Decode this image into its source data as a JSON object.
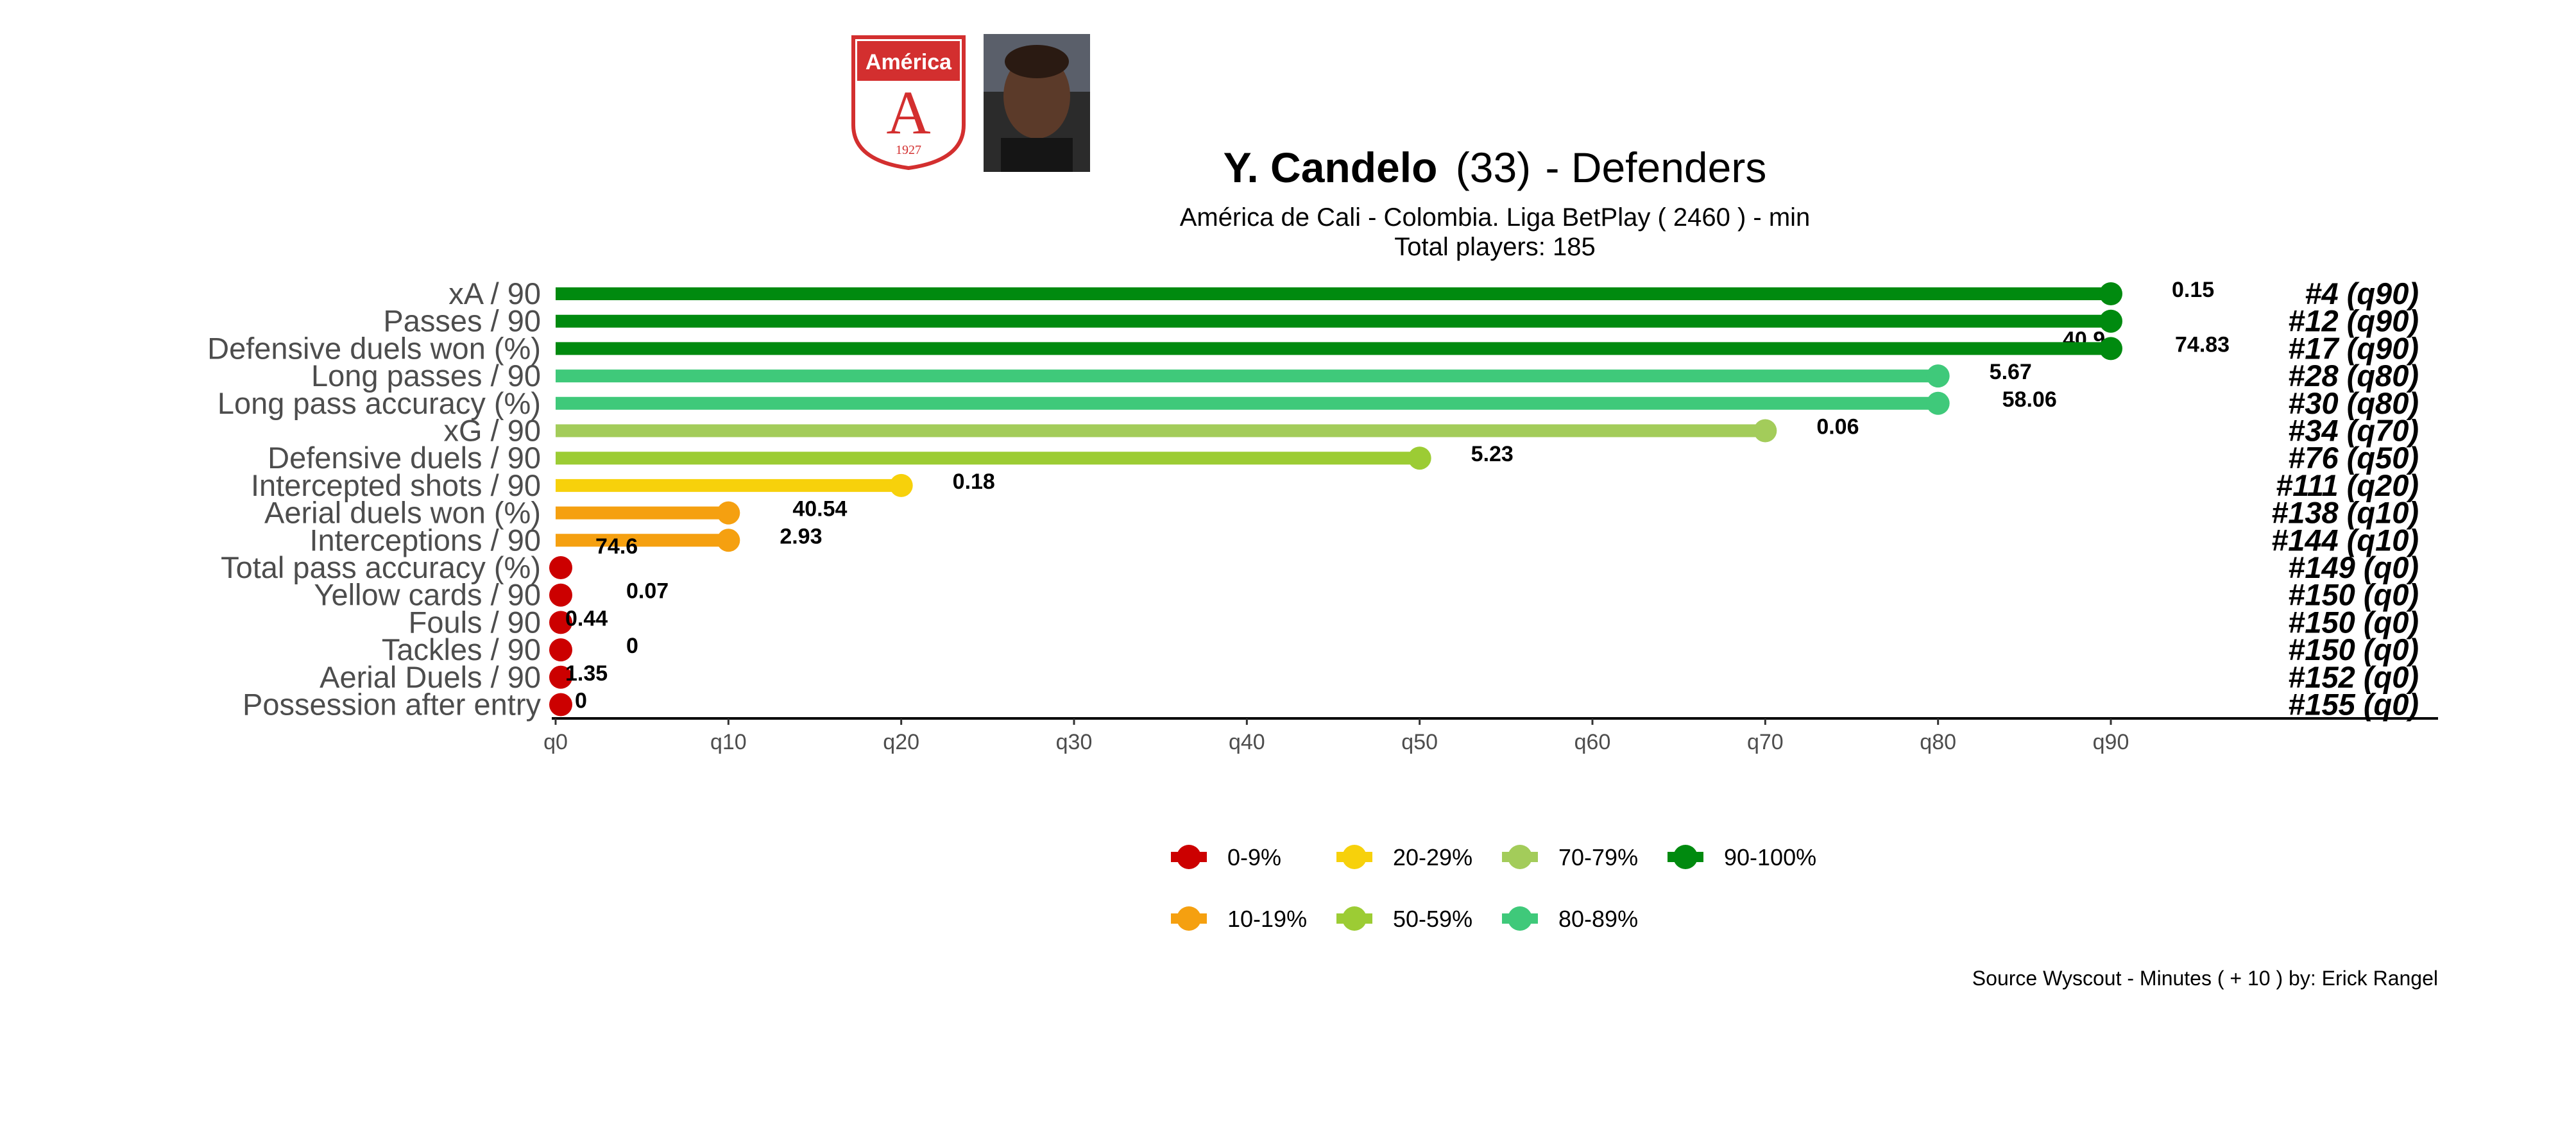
{
  "header": {
    "player_name": "Y. Candelo",
    "player_age": "(33)",
    "position": "Defenders",
    "subtitle": "América de Cali  -  Colombia. Liga BetPlay  ( 2460 ) - min",
    "total_players": "Total players:  185",
    "club_badge": {
      "name": "América",
      "year": "1927",
      "letter": "A",
      "color": "#d32f2f"
    },
    "player_photo": "player-photo"
  },
  "caption": "Source Wyscout - Minutes ( + 10 ) by: Erick Rangel",
  "colors": {
    "0-9%": "#cc0000",
    "10-19%": "#f5a010",
    "20-29%": "#f7d10b",
    "50-59%": "#9ccc34",
    "70-79%": "#a3cc5a",
    "80-89%": "#3fc97a",
    "90-100%": "#008a0f"
  },
  "legend": [
    {
      "label": "0-9%",
      "color": "#cc0000"
    },
    {
      "label": "20-29%",
      "color": "#f7d10b"
    },
    {
      "label": "70-79%",
      "color": "#a3cc5a"
    },
    {
      "label": "90-100%",
      "color": "#008a0f"
    },
    {
      "label": "10-19%",
      "color": "#f5a010"
    },
    {
      "label": "50-59%",
      "color": "#9ccc34"
    },
    {
      "label": "80-89%",
      "color": "#3fc97a"
    }
  ],
  "chart_data": {
    "type": "bar",
    "orientation": "horizontal",
    "x_axis_ticks": [
      "q0",
      "q10",
      "q20",
      "q30",
      "q40",
      "q50",
      "q60",
      "q70",
      "q80",
      "q90"
    ],
    "xlim": [
      0,
      100
    ],
    "grid": false,
    "legend_position": "bottom",
    "metrics": [
      {
        "name": "xA / 90",
        "percentile": 90,
        "value": "0.15",
        "rank": "#4 (q90)",
        "band": "90-100%"
      },
      {
        "name": "Passes / 90",
        "percentile": 90,
        "value": "40.9",
        "rank": "#12 (q90)",
        "band": "90-100%"
      },
      {
        "name": "Defensive duels won (%)",
        "percentile": 90,
        "value": "74.83",
        "rank": "#17 (q90)",
        "band": "90-100%"
      },
      {
        "name": "Long passes / 90",
        "percentile": 80,
        "value": "5.67",
        "rank": "#28 (q80)",
        "band": "80-89%"
      },
      {
        "name": "Long pass accuracy (%)",
        "percentile": 80,
        "value": "58.06",
        "rank": "#30 (q80)",
        "band": "80-89%"
      },
      {
        "name": "xG / 90",
        "percentile": 70,
        "value": "0.06",
        "rank": "#34 (q70)",
        "band": "70-79%"
      },
      {
        "name": "Defensive duels / 90",
        "percentile": 50,
        "value": "5.23",
        "rank": "#76 (q50)",
        "band": "50-59%"
      },
      {
        "name": "Intercepted shots / 90",
        "percentile": 20,
        "value": "0.18",
        "rank": "#111 (q20)",
        "band": "20-29%"
      },
      {
        "name": "Aerial duels won (%)",
        "percentile": 10,
        "value": "40.54",
        "rank": "#138 (q10)",
        "band": "10-19%"
      },
      {
        "name": "Interceptions / 90",
        "percentile": 10,
        "value": "2.93",
        "rank": "#144 (q10)",
        "band": "10-19%"
      },
      {
        "name": "Total pass accuracy (%)",
        "percentile": 0,
        "value": "74.6",
        "rank": "#149 (q0)",
        "band": "0-9%"
      },
      {
        "name": "Yellow cards / 90",
        "percentile": 0,
        "value": "0.07",
        "rank": "#150 (q0)",
        "band": "0-9%"
      },
      {
        "name": "Fouls / 90",
        "percentile": 0,
        "value": "0.44",
        "rank": "#150 (q0)",
        "band": "0-9%"
      },
      {
        "name": "Tackles / 90",
        "percentile": 0,
        "value": "0",
        "rank": "#150 (q0)",
        "band": "0-9%"
      },
      {
        "name": "Aerial Duels / 90",
        "percentile": 0,
        "value": "1.35",
        "rank": "#152 (q0)",
        "band": "0-9%"
      },
      {
        "name": "Possession after entry",
        "percentile": 0,
        "value": "0",
        "rank": "#155 (q0)",
        "band": "0-9%"
      }
    ]
  }
}
